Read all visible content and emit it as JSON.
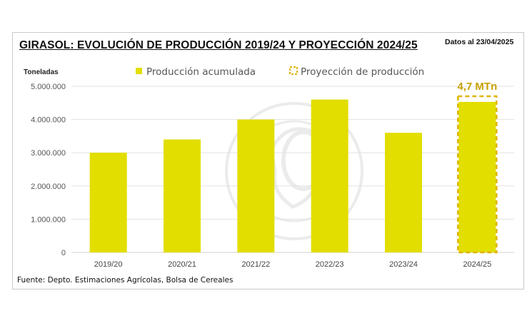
{
  "header": {
    "title": "GIRASOL: EVOLUCIÓN DE PRODUCCIÓN 2019/24 Y PROYECCIÓN 2024/25",
    "date_note": "Datos al 23/04/2025"
  },
  "footer": {
    "source": "Fuente: Depto. Estimaciones Agrícolas, Bolsa de Cereales"
  },
  "chart_data": {
    "type": "bar",
    "title": "GIRASOL: EVOLUCIÓN DE PRODUCCIÓN 2019/24 Y PROYECCIÓN 2024/25",
    "ylabel": "Toneladas",
    "xlabel": "",
    "categories": [
      "2019/20",
      "2020/21",
      "2021/22",
      "2022/23",
      "2023/24",
      "2024/25"
    ],
    "series": [
      {
        "name": "Producción acumulada",
        "values": [
          3000000,
          3400000,
          4000000,
          4600000,
          3600000,
          4530000
        ],
        "color": "#e2de00"
      },
      {
        "name": "Proyección de producción",
        "values": [
          null,
          null,
          null,
          null,
          null,
          4700000
        ],
        "color": "#e0b400",
        "style": "dashed-outline"
      }
    ],
    "yticks": [
      "0",
      "1.000.000",
      "2.000.000",
      "3.000.000",
      "4.000.000",
      "5.000.000"
    ],
    "ylim": [
      0,
      5000000
    ],
    "grid": true,
    "legend": "top",
    "annotations": [
      {
        "category": "2024/25",
        "text": "4,7 MTn",
        "color": "#c9a000"
      }
    ]
  }
}
